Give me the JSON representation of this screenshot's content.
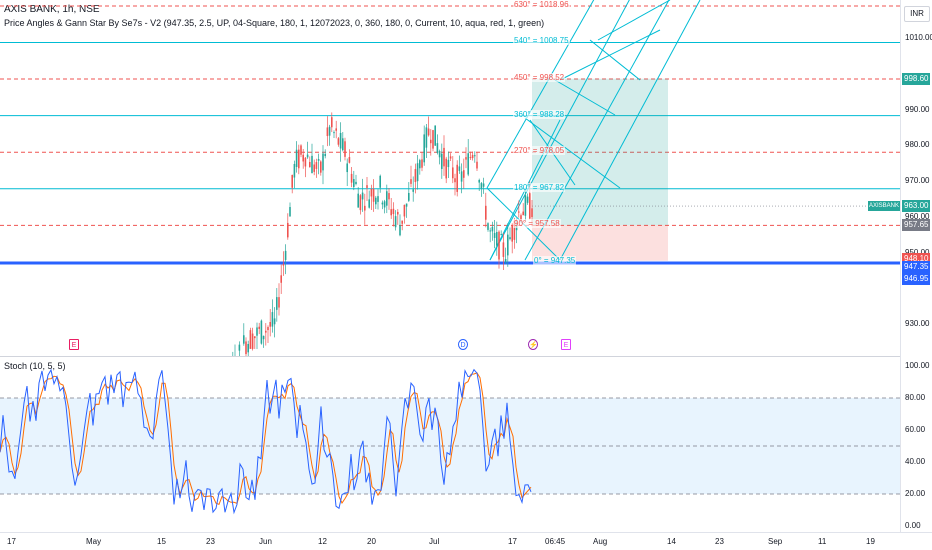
{
  "header": {
    "title": "AXIS BANK, 1h, NSE",
    "indicator": "Price Angles & Gann Star By Se7s - V2 (947.35, 2.5, UP, 04-Square, 180, 1, 12072023, 0, 360, 180, 0, Current, 10, aqua, red, 1, green)"
  },
  "stoch_title": "Stoch (10, 5, 5)",
  "currency": "INR",
  "price_ticks": [
    "1010.00",
    "990.00",
    "980.00",
    "970.00",
    "960.00",
    "950.00",
    "930.00"
  ],
  "stoch_ticks": [
    "100.00",
    "80.00",
    "60.00",
    "40.00",
    "20.00",
    "0.00"
  ],
  "price_labels": {
    "target": "998.60",
    "symbol": "AXISBANK",
    "last": "963.00",
    "stop_side": "957.65",
    "low_red": "948.10",
    "blue1": "947.35",
    "blue2": "946.95"
  },
  "gann_labels": [
    {
      "text": "630° = 1018.96",
      "color": "#ef5350"
    },
    {
      "text": "540° = 1008.75",
      "color": "#00bcd4"
    },
    {
      "text": "450° = 998.52",
      "color": "#ef5350"
    },
    {
      "text": "360° = 988.28",
      "color": "#00bcd4"
    },
    {
      "text": "270° = 978.05",
      "color": "#ef5350"
    },
    {
      "text": "180° = 967.82",
      "color": "#00bcd4"
    },
    {
      "text": "90° = 957.58",
      "color": "#ef5350"
    },
    {
      "text": "0° = 947.35",
      "color": "#00bcd4"
    }
  ],
  "events": [
    {
      "glyph": "E",
      "color": "#e91e63",
      "name": "earnings-event-icon-may"
    },
    {
      "glyph": "D",
      "color": "#2962ff",
      "name": "dividend-event-icon"
    },
    {
      "glyph": "⚡",
      "color": "#9c27b0",
      "name": "split-event-icon"
    },
    {
      "glyph": "E",
      "color": "#e040fb",
      "name": "earnings-event-icon-jul"
    }
  ],
  "time_labels": [
    "17",
    "May",
    "15",
    "23",
    "Jun",
    "12",
    "20",
    "Jul",
    "17",
    "06:45",
    "Aug",
    "14",
    "23",
    "Sep",
    "11",
    "19"
  ],
  "colors": {
    "up": "#26a69a",
    "down": "#ef5350",
    "gann_line": "#00bcd4",
    "blue": "#2962ff",
    "stoch_k": "#2962ff",
    "stoch_d": "#ff6d00"
  }
}
